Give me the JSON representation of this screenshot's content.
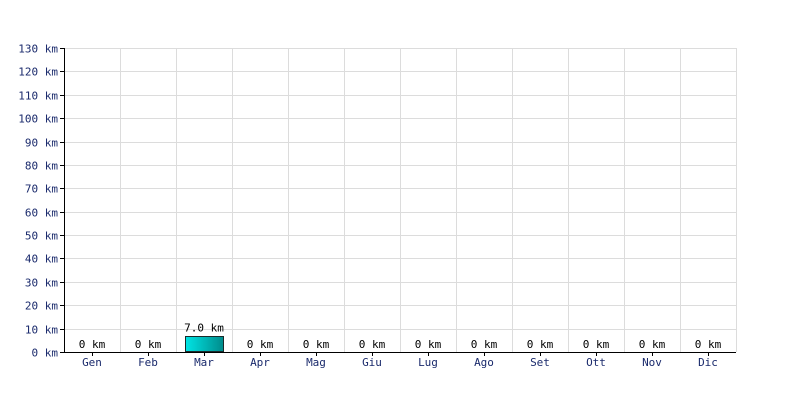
{
  "chart_data": {
    "type": "bar",
    "categories": [
      "Gen",
      "Feb",
      "Mar",
      "Apr",
      "Mag",
      "Giu",
      "Lug",
      "Ago",
      "Set",
      "Ott",
      "Nov",
      "Dic"
    ],
    "values": [
      0,
      0,
      7.0,
      0,
      0,
      0,
      0,
      0,
      0,
      0,
      0,
      0
    ],
    "data_labels": [
      "0 km",
      "0 km",
      "7.0 km",
      "0 km",
      "0 km",
      "0 km",
      "0 km",
      "0 km",
      "0 km",
      "0 km",
      "0 km",
      "0 km"
    ],
    "yticks": [
      0,
      10,
      20,
      30,
      40,
      50,
      60,
      70,
      80,
      90,
      100,
      110,
      120,
      130
    ],
    "ytick_labels": [
      "0 km",
      "10 km",
      "20 km",
      "30 km",
      "40 km",
      "50 km",
      "60 km",
      "70 km",
      "80 km",
      "90 km",
      "100 km",
      "110 km",
      "120 km",
      "130 km"
    ],
    "ylim": [
      0,
      130
    ],
    "unit": "km",
    "title": "",
    "xlabel": "",
    "ylabel": "",
    "grid": true,
    "colors": {
      "bar_light": "#00e5e5",
      "bar_dark": "#008b8b",
      "bar_stroke": "#1a2a2a",
      "grid": "#dcdcdc",
      "axis": "#000000",
      "tick_text": "#1a2a6c"
    }
  }
}
